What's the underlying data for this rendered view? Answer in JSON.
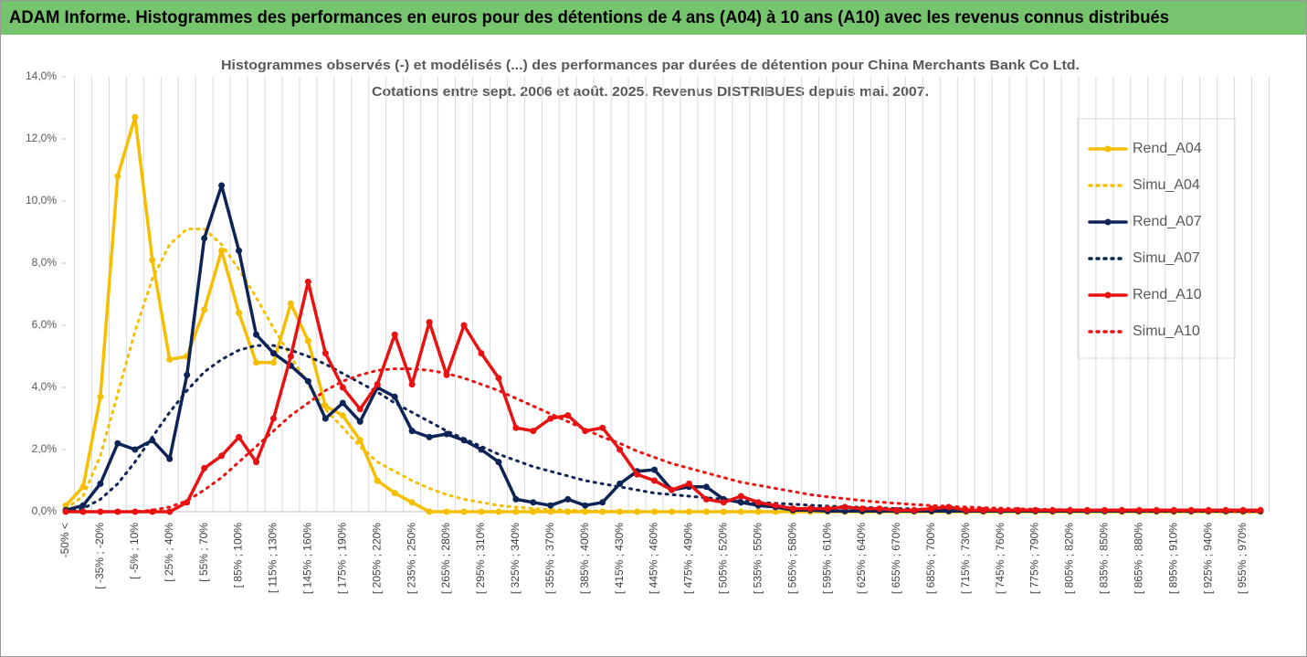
{
  "header": {
    "title": "ADAM Informe. Histogrammes des performances en euros pour des détentions de 4 ans (A04) à 10 ans (A10) avec les revenus connus distribués"
  },
  "chart_data": {
    "type": "line",
    "title": "Histogrammes observés (-) et modélisés (...) des performances par durées de détention pour China Merchants Bank Co Ltd.",
    "subtitle": "Cotations entre sept. 2006 et août. 2025. Revenus DISTRIBUES depuis mai. 2007.",
    "categories": [
      "-50% <",
      null,
      "[ -35% ; -20%",
      null,
      "[ -5% ; 10%",
      null,
      "[ 25% ; 40%",
      null,
      "[ 55% ; 70%",
      null,
      "[ 85% ; 100%",
      null,
      "[ 115% ; 130%",
      null,
      "[ 145% ; 160%",
      null,
      "[ 175% ; 190%",
      null,
      "[ 205% ; 220%",
      null,
      "[ 235% ; 250%",
      null,
      "[ 265% ; 280%",
      null,
      "[ 295% ; 310%",
      null,
      "[ 325% ; 340%",
      null,
      "[ 355% ; 370%",
      null,
      "[ 385% ; 400%",
      null,
      "[ 415% ; 430%",
      null,
      "[ 445% ; 460%",
      null,
      "[ 475% ; 490%",
      null,
      "[ 505% ; 520%",
      null,
      "[ 535% ; 550%",
      null,
      "[ 565% ; 580%",
      null,
      "[ 595% ; 610%",
      null,
      "[ 625% ; 640%",
      null,
      "[ 655% ; 670%",
      null,
      "[ 685% ; 700%",
      null,
      "[ 715% ; 730%",
      null,
      "[ 745% ; 760%",
      null,
      "[ 775% ; 790%",
      null,
      "[ 805% ; 820%",
      null,
      "[ 835% ; 850%",
      null,
      "[ 865% ; 880%",
      null,
      "[ 895% ; 910%",
      null,
      "[ 925% ; 940%",
      null,
      "[ 955% ; 970%",
      null
    ],
    "series": [
      {
        "name": "Rend_A04",
        "color": "#f5bf00",
        "style": "solid",
        "marker": true,
        "values": [
          0.2,
          0.8,
          3.7,
          10.8,
          12.7,
          8.1,
          4.9,
          5.0,
          6.5,
          8.4,
          6.4,
          4.8,
          4.8,
          6.7,
          5.5,
          3.4,
          3.1,
          2.3,
          1.0,
          0.6,
          0.3,
          0,
          0,
          0,
          0,
          0,
          0,
          0,
          0,
          0,
          0,
          0,
          0,
          0,
          0,
          0,
          0,
          0,
          0,
          0,
          0,
          0,
          0,
          0,
          0,
          0,
          0,
          0,
          0,
          0,
          0,
          0,
          0,
          0,
          0,
          0,
          0,
          0,
          0,
          0,
          0,
          0,
          0,
          0,
          0,
          0,
          0,
          0,
          0,
          0
        ]
      },
      {
        "name": "Simu_A04",
        "color": "#f5bf00",
        "style": "dotted",
        "marker": false,
        "values": [
          0.1,
          0.5,
          1.8,
          3.8,
          5.8,
          7.5,
          8.6,
          9.1,
          9.1,
          8.6,
          7.8,
          6.9,
          5.9,
          5.0,
          4.1,
          3.3,
          2.7,
          2.1,
          1.6,
          1.3,
          1.0,
          0.75,
          0.55,
          0.4,
          0.3,
          0.2,
          0.15,
          0.1,
          0.07,
          0.05,
          0.03,
          0.02,
          0.01,
          0,
          0,
          0,
          0,
          0,
          0,
          0,
          0,
          0,
          0,
          0,
          0,
          0,
          0,
          0,
          0,
          0,
          0,
          0,
          0,
          0,
          0,
          0,
          0,
          0,
          0,
          0,
          0,
          0,
          0,
          0,
          0,
          0,
          0,
          0,
          0,
          0
        ]
      },
      {
        "name": "Rend_A07",
        "color": "#0e2356",
        "style": "solid",
        "marker": true,
        "values": [
          0.05,
          0.2,
          0.9,
          2.2,
          2.0,
          2.3,
          1.7,
          4.4,
          8.8,
          10.5,
          8.4,
          5.7,
          5.1,
          4.7,
          4.2,
          3.0,
          3.5,
          2.9,
          4.0,
          3.7,
          2.6,
          2.4,
          2.5,
          2.3,
          2.0,
          1.6,
          0.4,
          0.3,
          0.2,
          0.4,
          0.2,
          0.3,
          0.9,
          1.3,
          1.35,
          0.7,
          0.8,
          0.8,
          0.4,
          0.3,
          0.2,
          0.15,
          0.05,
          0.05,
          0.02,
          0.02,
          0.02,
          0.02,
          0.02,
          0.02,
          0.02,
          0.02,
          0.02,
          0.02,
          0.02,
          0.02,
          0.02,
          0.02,
          0.02,
          0.02,
          0.02,
          0.02,
          0.02,
          0.02,
          0.02,
          0.02,
          0.02,
          0.02,
          0.02,
          0.02
        ]
      },
      {
        "name": "Simu_A07",
        "color": "#0e2356",
        "style": "dotted",
        "marker": false,
        "values": [
          0,
          0.1,
          0.4,
          0.9,
          1.6,
          2.4,
          3.2,
          3.9,
          4.5,
          4.9,
          5.2,
          5.35,
          5.35,
          5.2,
          5.0,
          4.75,
          4.45,
          4.15,
          3.85,
          3.5,
          3.2,
          2.9,
          2.6,
          2.35,
          2.1,
          1.85,
          1.65,
          1.45,
          1.3,
          1.15,
          1.0,
          0.9,
          0.8,
          0.7,
          0.6,
          0.55,
          0.5,
          0.45,
          0.4,
          0.35,
          0.3,
          0.27,
          0.24,
          0.21,
          0.18,
          0.16,
          0.14,
          0.12,
          0.1,
          0.09,
          0.08,
          0.07,
          0.06,
          0.06,
          0.05,
          0.05,
          0.04,
          0.04,
          0.03,
          0.03,
          0.03,
          0.03,
          0.02,
          0.02,
          0.02,
          0.02,
          0.02,
          0.01,
          0.01,
          0.01
        ]
      },
      {
        "name": "Rend_A10",
        "color": "#e81212",
        "style": "solid",
        "marker": true,
        "values": [
          0,
          0,
          0,
          0,
          0,
          0,
          0,
          0.3,
          1.4,
          1.8,
          2.4,
          1.6,
          3.0,
          5.0,
          7.4,
          5.1,
          4.0,
          3.3,
          4.1,
          5.7,
          4.1,
          6.1,
          4.4,
          6.0,
          5.1,
          4.3,
          2.7,
          2.6,
          3.0,
          3.1,
          2.6,
          2.7,
          2.0,
          1.2,
          1.0,
          0.7,
          0.9,
          0.4,
          0.3,
          0.5,
          0.3,
          0.2,
          0.1,
          0.1,
          0.1,
          0.15,
          0.1,
          0.1,
          0.05,
          0.05,
          0.1,
          0.15,
          0.05,
          0.05,
          0.05,
          0.05,
          0.05,
          0.05,
          0.05,
          0.05,
          0.05,
          0.05,
          0.05,
          0.05,
          0.05,
          0.05,
          0.05,
          0.05,
          0.05,
          0.05
        ]
      },
      {
        "name": "Simu_A10",
        "color": "#e81212",
        "style": "dotted",
        "marker": false,
        "values": [
          0,
          0,
          0,
          0,
          0,
          0.05,
          0.15,
          0.35,
          0.7,
          1.1,
          1.6,
          2.1,
          2.6,
          3.1,
          3.5,
          3.9,
          4.2,
          4.4,
          4.55,
          4.6,
          4.6,
          4.55,
          4.45,
          4.3,
          4.1,
          3.9,
          3.65,
          3.4,
          3.15,
          2.9,
          2.65,
          2.4,
          2.2,
          1.95,
          1.75,
          1.55,
          1.4,
          1.25,
          1.1,
          0.95,
          0.85,
          0.75,
          0.65,
          0.55,
          0.48,
          0.42,
          0.36,
          0.31,
          0.27,
          0.23,
          0.2,
          0.17,
          0.15,
          0.13,
          0.11,
          0.09,
          0.08,
          0.07,
          0.06,
          0.05,
          0.04,
          0.04,
          0.03,
          0.03,
          0.03,
          0.02,
          0.02,
          0.02,
          0.01,
          0.01
        ]
      }
    ],
    "ylim": [
      0,
      14
    ],
    "yticks": [
      {
        "value": 0,
        "label": "0,0%"
      },
      {
        "value": 2,
        "label": "2,0%"
      },
      {
        "value": 4,
        "label": "4,0%"
      },
      {
        "value": 6,
        "label": "6,0%"
      },
      {
        "value": 8,
        "label": "8,0%"
      },
      {
        "value": 10,
        "label": "10,0%"
      },
      {
        "value": 12,
        "label": "12,0%"
      },
      {
        "value": 14,
        "label": "14,0%"
      }
    ],
    "grid": "x",
    "legend": "right"
  }
}
